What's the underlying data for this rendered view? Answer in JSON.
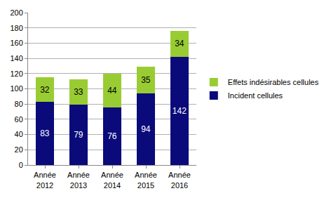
{
  "chart_data": {
    "type": "bar",
    "stacked": true,
    "data_labels": true,
    "grid": true,
    "legend": "right",
    "categories": [
      "Année 2012",
      "Année 2013",
      "Année 2014",
      "Année 2015",
      "Année 2016"
    ],
    "series": [
      {
        "name": "Incident cellules",
        "color": "#0a0a7a",
        "values": [
          83,
          79,
          76,
          94,
          142
        ]
      },
      {
        "name": "Effets indésirables cellules",
        "color": "#99cc33",
        "values": [
          32,
          33,
          44,
          35,
          34
        ]
      }
    ],
    "ylim": [
      0,
      200
    ],
    "yticks": [
      0,
      20,
      40,
      60,
      80,
      100,
      120,
      140,
      160,
      180,
      200
    ]
  }
}
